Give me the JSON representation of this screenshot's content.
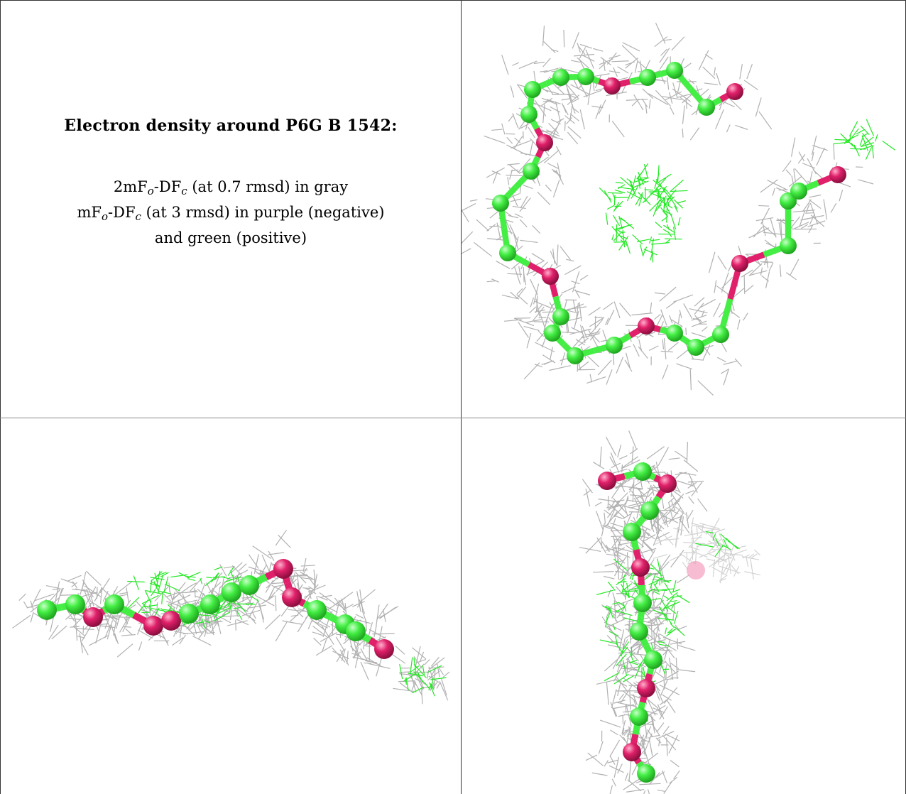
{
  "panel_text": {
    "title": "Electron density around P6G B 1542:",
    "line1": {
      "a": "2mF",
      "a_sub": "o",
      "b": "-DF",
      "b_sub": "c",
      "rest": " (at 0.7 rmsd) in gray"
    },
    "line2": {
      "a": "mF",
      "a_sub": "o",
      "b": "-DF",
      "b_sub": "c",
      "rest": " (at 3 rmsd) in purple (negative)"
    },
    "line3": "and green (positive)"
  },
  "colors": {
    "mesh_2fofc": "#a9a9a9",
    "diff_positive": "#22e822",
    "atom_carbon": "#44ee44",
    "atom_oxygen": "#e0206a",
    "border": "#333333"
  },
  "views": [
    {
      "name": "top-view"
    },
    {
      "name": "side-view"
    },
    {
      "name": "end-view"
    }
  ]
}
